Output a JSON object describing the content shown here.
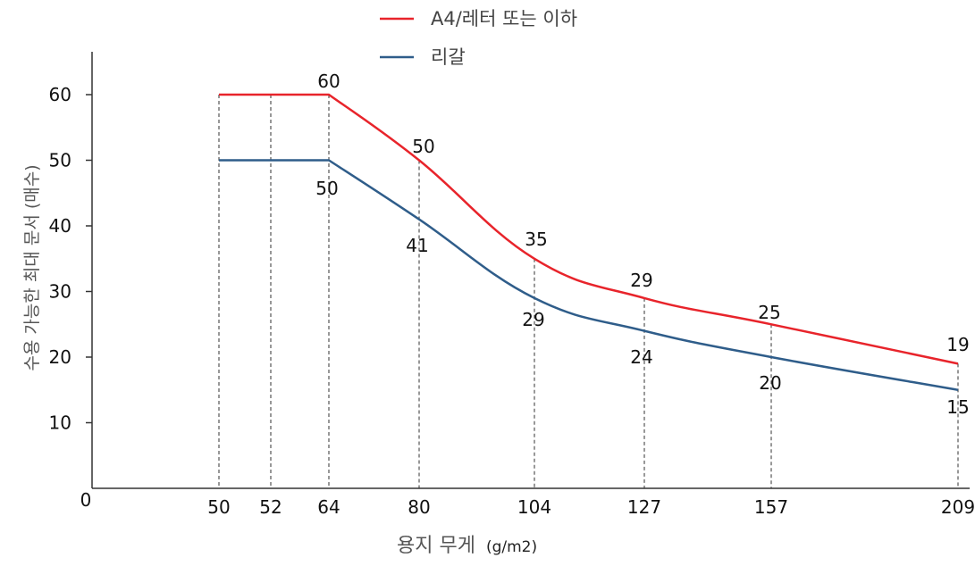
{
  "chart_data": {
    "type": "line",
    "x": [
      50,
      52,
      64,
      80,
      104,
      127,
      157,
      209
    ],
    "x_tick_labels": [
      "50",
      "52",
      "64",
      "80",
      "104",
      "127",
      "157",
      "209"
    ],
    "y_ticks": [
      10,
      20,
      30,
      40,
      50,
      60
    ],
    "y_tick_labels": [
      "10",
      "20",
      "30",
      "40",
      "50",
      "60"
    ],
    "origin_label": "0",
    "ylim": [
      0,
      65
    ],
    "xlabel": "용지 무게",
    "xlabel_unit": "(g/m2)",
    "ylabel": "수용 가능한 최대 문서 (매수)",
    "legend_position": "top-center",
    "grid": "vertical dashed guides at each x tick",
    "series": [
      {
        "name": "A4/레터 또는 이하",
        "color": "#e8242b",
        "x": [
          50,
          64,
          80,
          104,
          127,
          157,
          209
        ],
        "values": [
          60,
          60,
          50,
          35,
          29,
          25,
          19
        ],
        "labels": [
          {
            "x": 64,
            "text": "60"
          },
          {
            "x": 80,
            "text": "50"
          },
          {
            "x": 104,
            "text": "35"
          },
          {
            "x": 127,
            "text": "29"
          },
          {
            "x": 157,
            "text": "25"
          },
          {
            "x": 209,
            "text": "19"
          }
        ]
      },
      {
        "name": "리갈",
        "color": "#2f5d8a",
        "x": [
          50,
          64,
          80,
          104,
          127,
          157,
          209
        ],
        "values": [
          50,
          50,
          41,
          29,
          24,
          20,
          15
        ],
        "labels": [
          {
            "x": 64,
            "text": "50"
          },
          {
            "x": 80,
            "text": "41"
          },
          {
            "x": 104,
            "text": "29"
          },
          {
            "x": 127,
            "text": "24"
          },
          {
            "x": 157,
            "text": "20"
          },
          {
            "x": 209,
            "text": "15"
          }
        ]
      }
    ]
  }
}
